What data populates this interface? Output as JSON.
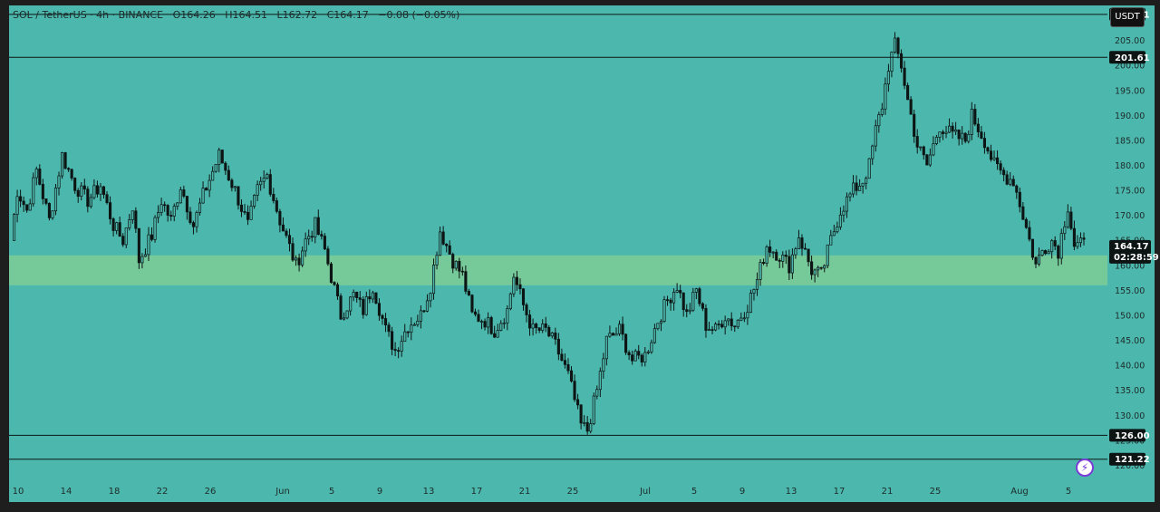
{
  "header": {
    "symbol": "SOL / TetherUS · 4h · BINANCE",
    "open": "O164.26",
    "high": "H164.51",
    "low": "L162.72",
    "close": "C164.17",
    "change": "−0.08 (−0.05%)"
  },
  "currency_button": "USDT",
  "colors": {
    "background": "#4cb8ad",
    "zone": "#7ecb95",
    "candle": "#0d1414",
    "frame": "#1e1e1e",
    "level_line": "#0d1414"
  },
  "icons": {
    "alert": "bolt-icon"
  },
  "chart_data": {
    "type": "candlestick",
    "price_axis": {
      "range": [
        117,
        212
      ],
      "ticks": [
        "205.00",
        "200.00",
        "195.00",
        "190.00",
        "185.00",
        "180.00",
        "175.00",
        "170.00",
        "165.00",
        "160.00",
        "155.00",
        "150.00",
        "145.00",
        "140.00",
        "135.00",
        "130.00",
        "125.00",
        "120.00"
      ]
    },
    "time_axis": {
      "ticks": [
        "10",
        "14",
        "18",
        "22",
        "26",
        "Jun",
        "5",
        "9",
        "13",
        "17",
        "21",
        "25",
        "Jul",
        "5",
        "9",
        "13",
        "17",
        "21",
        "25",
        "Aug",
        "5"
      ]
    },
    "horizontal_levels": [
      210.21,
      201.61,
      126.0,
      121.22
    ],
    "level_labels": [
      "210.21",
      "201.61",
      "126.00",
      "121.22"
    ],
    "zone": {
      "from": 156.0,
      "to": 162.0
    },
    "last_price": {
      "value": "164.17",
      "countdown": "02:28:59"
    },
    "path": [
      [
        0,
        165
      ],
      [
        2,
        175
      ],
      [
        5,
        171
      ],
      [
        8,
        179
      ],
      [
        12,
        169
      ],
      [
        16,
        182
      ],
      [
        20,
        176
      ],
      [
        24,
        173
      ],
      [
        28,
        176
      ],
      [
        32,
        168
      ],
      [
        35,
        165
      ],
      [
        38,
        172
      ],
      [
        40,
        161
      ],
      [
        44,
        166
      ],
      [
        47,
        173
      ],
      [
        50,
        169
      ],
      [
        53,
        176
      ],
      [
        57,
        168
      ],
      [
        60,
        174
      ],
      [
        65,
        182
      ],
      [
        70,
        175
      ],
      [
        74,
        168
      ],
      [
        77,
        175
      ],
      [
        80,
        178
      ],
      [
        84,
        169
      ],
      [
        89,
        160
      ],
      [
        92,
        165
      ],
      [
        95,
        168
      ],
      [
        98,
        163
      ],
      [
        103,
        150
      ],
      [
        107,
        154
      ],
      [
        110,
        151
      ],
      [
        113,
        156
      ],
      [
        117,
        147
      ],
      [
        120,
        143
      ],
      [
        124,
        148
      ],
      [
        128,
        150
      ],
      [
        131,
        156
      ],
      [
        134,
        167
      ],
      [
        138,
        161
      ],
      [
        141,
        158
      ],
      [
        144,
        150
      ],
      [
        148,
        149
      ],
      [
        151,
        147
      ],
      [
        155,
        151
      ],
      [
        157,
        158
      ],
      [
        160,
        152
      ],
      [
        163,
        147
      ],
      [
        167,
        147
      ],
      [
        170,
        144
      ],
      [
        174,
        138
      ],
      [
        176,
        133
      ],
      [
        178,
        128
      ],
      [
        180,
        127
      ],
      [
        183,
        135
      ],
      [
        186,
        145
      ],
      [
        190,
        147
      ],
      [
        194,
        141
      ],
      [
        198,
        142
      ],
      [
        202,
        149
      ],
      [
        205,
        153
      ],
      [
        208,
        156
      ],
      [
        211,
        150
      ],
      [
        214,
        155
      ],
      [
        217,
        148
      ],
      [
        220,
        147
      ],
      [
        223,
        150
      ],
      [
        226,
        148
      ],
      [
        230,
        152
      ],
      [
        233,
        157
      ],
      [
        236,
        164
      ],
      [
        240,
        162
      ],
      [
        243,
        160
      ],
      [
        246,
        166
      ],
      [
        250,
        159
      ],
      [
        253,
        158
      ],
      [
        256,
        165
      ],
      [
        259,
        171
      ],
      [
        263,
        175
      ],
      [
        266,
        177
      ],
      [
        268,
        180
      ],
      [
        270,
        187
      ],
      [
        272,
        192
      ],
      [
        274,
        200
      ],
      [
        276,
        204
      ],
      [
        278,
        200
      ],
      [
        280,
        193
      ],
      [
        283,
        184
      ],
      [
        286,
        180
      ],
      [
        290,
        188
      ],
      [
        294,
        186
      ],
      [
        298,
        185
      ],
      [
        300,
        190
      ],
      [
        304,
        185
      ],
      [
        307,
        180
      ],
      [
        310,
        178
      ],
      [
        313,
        177
      ],
      [
        316,
        170
      ],
      [
        318,
        165
      ],
      [
        320,
        160
      ],
      [
        322,
        163
      ],
      [
        325,
        165
      ],
      [
        327,
        163
      ],
      [
        330,
        172
      ],
      [
        332,
        164
      ],
      [
        335,
        164
      ]
    ]
  }
}
